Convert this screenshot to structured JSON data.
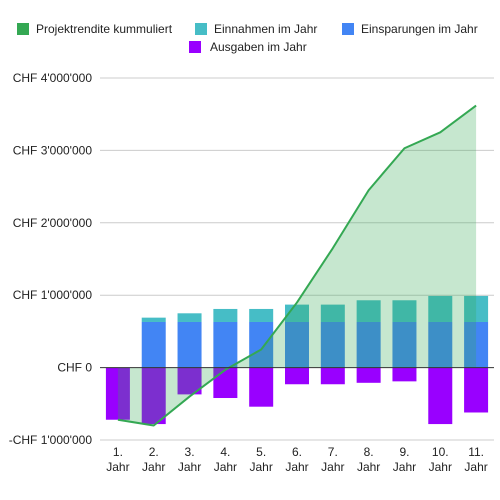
{
  "chart_data": {
    "type": "bar",
    "categories": [
      [
        "1.",
        "Jahr"
      ],
      [
        "2.",
        "Jahr"
      ],
      [
        "3.",
        "Jahr"
      ],
      [
        "4.",
        "Jahr"
      ],
      [
        "5.",
        "Jahr"
      ],
      [
        "6.",
        "Jahr"
      ],
      [
        "7.",
        "Jahr"
      ],
      [
        "8.",
        "Jahr"
      ],
      [
        "9.",
        "Jahr"
      ],
      [
        "10.",
        "Jahr"
      ],
      [
        "11.",
        "Jahr"
      ]
    ],
    "ylim": [
      -1000000,
      4000000
    ],
    "yticks": [
      {
        "value": 4000000,
        "label": "CHF 4'000'000"
      },
      {
        "value": 3000000,
        "label": "CHF 3'000'000"
      },
      {
        "value": 2000000,
        "label": "CHF 2'000'000"
      },
      {
        "value": 1000000,
        "label": "CHF 1'000'000"
      },
      {
        "value": 0,
        "label": "CHF 0"
      },
      {
        "value": -1000000,
        "label": "-CHF 1'000'000"
      }
    ],
    "grid": true,
    "legend_position": "top",
    "series": [
      {
        "name": "Projektrendite kummuliert",
        "kind": "area-line",
        "color": "#34a853",
        "values": [
          -720000,
          -800000,
          -400000,
          -30000,
          250000,
          900000,
          1650000,
          2450000,
          3030000,
          3250000,
          3620000
        ]
      },
      {
        "name": "Einnahmen im Jahr",
        "kind": "stacked-bar",
        "color": "#46bdc6",
        "values": [
          0,
          60000,
          120000,
          180000,
          180000,
          240000,
          240000,
          300000,
          300000,
          360000,
          360000
        ]
      },
      {
        "name": "Einsparungen im Jahr",
        "kind": "stacked-bar",
        "color": "#4285f4",
        "values": [
          0,
          630000,
          630000,
          630000,
          630000,
          630000,
          630000,
          630000,
          630000,
          630000,
          630000
        ]
      },
      {
        "name": "Ausgaben im Jahr",
        "kind": "bar",
        "color": "#9900ff",
        "values": [
          -720000,
          -780000,
          -370000,
          -420000,
          -540000,
          -230000,
          -230000,
          -210000,
          -190000,
          -780000,
          -620000
        ]
      }
    ]
  }
}
